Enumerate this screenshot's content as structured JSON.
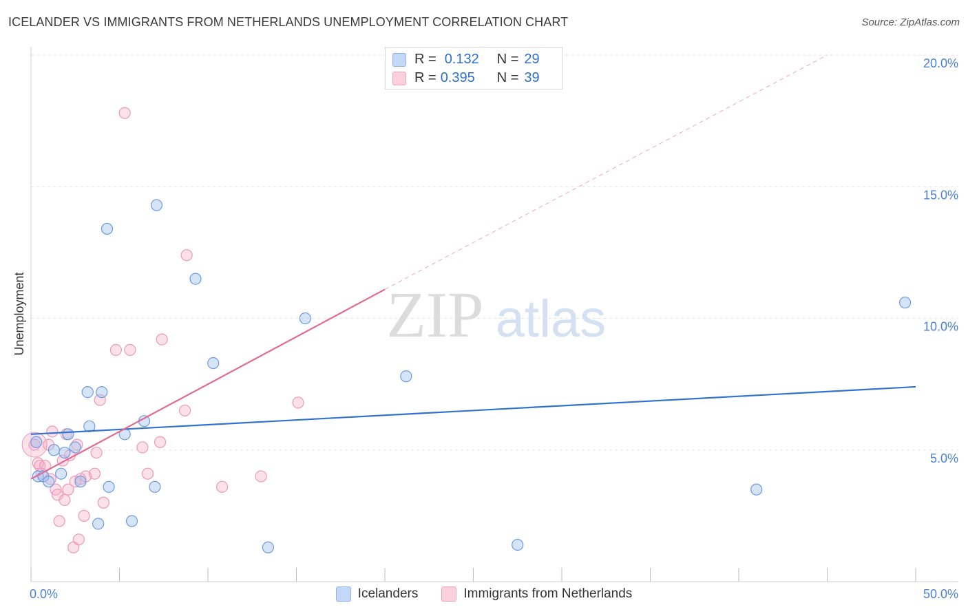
{
  "header": {
    "title": "ICELANDER VS IMMIGRANTS FROM NETHERLANDS UNEMPLOYMENT CORRELATION CHART",
    "source": "Source: ZipAtlas.com"
  },
  "watermark": {
    "zip": "ZIP",
    "atlas": "atlas"
  },
  "stats": {
    "r_label": "R =",
    "n_label": "N =",
    "rows": [
      {
        "r": "0.132",
        "n": "29",
        "color": "#4a86d8"
      },
      {
        "r": "0.395",
        "n": "39",
        "color": "#e8719a"
      }
    ]
  },
  "legend": {
    "items": [
      "Icelanders",
      "Immigrants from Netherlands"
    ]
  },
  "chart_data": {
    "type": "scatter",
    "ylabel": "Unemployment",
    "xlim": [
      0,
      50
    ],
    "ylim": [
      0,
      20
    ],
    "x_tick_labels": [
      "0.0%",
      "50.0%"
    ],
    "y_ticks": [
      5,
      10,
      15,
      20
    ],
    "y_tick_labels": [
      "5.0%",
      "10.0%",
      "15.0%",
      "20.0%"
    ],
    "grid": "horizontal dashed",
    "legend_position": "bottom",
    "colors": {
      "blue": "#4a86d8",
      "pink": "#e8719a",
      "blue_line": "#2f73d0",
      "pink_line": "#e06a93"
    },
    "series": [
      {
        "name": "Icelanders",
        "points": [
          [
            0.3,
            5.3
          ],
          [
            0.4,
            4.0
          ],
          [
            0.7,
            4.0
          ],
          [
            1.0,
            3.8
          ],
          [
            1.3,
            5.0
          ],
          [
            1.7,
            4.1
          ],
          [
            1.9,
            4.9
          ],
          [
            2.1,
            5.6
          ],
          [
            2.5,
            5.1
          ],
          [
            2.8,
            3.8
          ],
          [
            3.2,
            7.2
          ],
          [
            3.3,
            5.9
          ],
          [
            3.8,
            2.2
          ],
          [
            4.0,
            7.2
          ],
          [
            4.3,
            13.4
          ],
          [
            4.4,
            3.6
          ],
          [
            5.3,
            5.6
          ],
          [
            5.7,
            2.3
          ],
          [
            6.4,
            6.1
          ],
          [
            7.0,
            3.6
          ],
          [
            7.1,
            14.3
          ],
          [
            9.3,
            11.5
          ],
          [
            10.3,
            8.3
          ],
          [
            13.4,
            1.3
          ],
          [
            15.5,
            10.0
          ],
          [
            21.2,
            7.8
          ],
          [
            27.5,
            1.4
          ],
          [
            41.0,
            3.5
          ],
          [
            49.4,
            10.6
          ]
        ],
        "trend": {
          "x": [
            0,
            50
          ],
          "y": [
            5.6,
            7.4
          ]
        }
      },
      {
        "name": "Immigrants from Netherlands",
        "points": [
          [
            0.2,
            5.2
          ],
          [
            0.4,
            4.5
          ],
          [
            0.5,
            4.4
          ],
          [
            0.6,
            4.1
          ],
          [
            0.8,
            4.4
          ],
          [
            1.0,
            5.2
          ],
          [
            1.1,
            3.9
          ],
          [
            1.2,
            5.7
          ],
          [
            1.4,
            3.5
          ],
          [
            1.5,
            3.3
          ],
          [
            1.6,
            2.3
          ],
          [
            1.8,
            4.6
          ],
          [
            1.9,
            3.1
          ],
          [
            2.0,
            5.6
          ],
          [
            2.1,
            3.5
          ],
          [
            2.2,
            4.8
          ],
          [
            2.4,
            1.3
          ],
          [
            2.5,
            3.8
          ],
          [
            2.6,
            5.2
          ],
          [
            2.7,
            1.6
          ],
          [
            2.8,
            3.9
          ],
          [
            3.0,
            2.5
          ],
          [
            3.1,
            4.0
          ],
          [
            3.7,
            4.9
          ],
          [
            3.9,
            6.9
          ],
          [
            4.1,
            3.0
          ],
          [
            4.8,
            8.8
          ],
          [
            5.3,
            17.8
          ],
          [
            5.6,
            8.8
          ],
          [
            6.3,
            5.1
          ],
          [
            6.6,
            4.1
          ],
          [
            7.3,
            5.3
          ],
          [
            7.4,
            9.2
          ],
          [
            8.7,
            6.5
          ],
          [
            8.8,
            12.4
          ],
          [
            10.8,
            3.6
          ],
          [
            15.1,
            6.8
          ],
          [
            13.0,
            4.0
          ],
          [
            3.6,
            4.1
          ]
        ],
        "trend": {
          "x": [
            0,
            20
          ],
          "y": [
            3.9,
            11.1
          ]
        },
        "trend_extension": {
          "x": [
            20,
            45
          ],
          "y": [
            11.1,
            20.0
          ]
        }
      }
    ]
  }
}
